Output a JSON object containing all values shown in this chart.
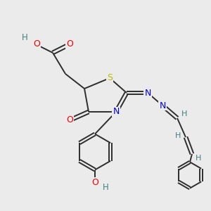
{
  "bg_color": "#ebebeb",
  "atom_colors": {
    "C": "#2d2d2d",
    "H": "#408080",
    "N": "#0000ee",
    "O": "#ee0000",
    "S": "#bbbb00"
  },
  "bond_color": "#2d2d2d",
  "figsize": [
    3.0,
    3.0
  ],
  "dpi": 100
}
